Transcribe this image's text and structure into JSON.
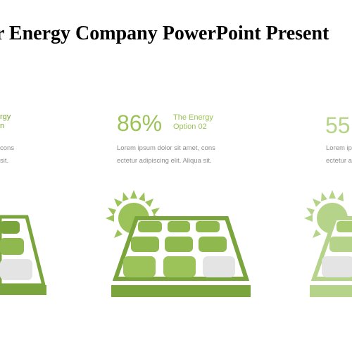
{
  "title": "r Energy Company PowerPoint Present",
  "colors": {
    "green_dark": "#7aa53c",
    "green_mid": "#9bc35a",
    "green_light": "#b6d38a",
    "cell_grey": "#e4e4e4",
    "text_grey": "#8c8c8c"
  },
  "options": [
    {
      "percent": "",
      "label": "rgy\nn",
      "description": "cons\nsit."
    },
    {
      "percent": "86%",
      "label": "The Energy\nOption 02",
      "description": "Lorem ipsum dolor sit amet, cons\nectetur adipiscing elit. Aliqua sit."
    },
    {
      "percent": "55",
      "label": "",
      "description": "Lorem ip\nectetur a"
    }
  ]
}
